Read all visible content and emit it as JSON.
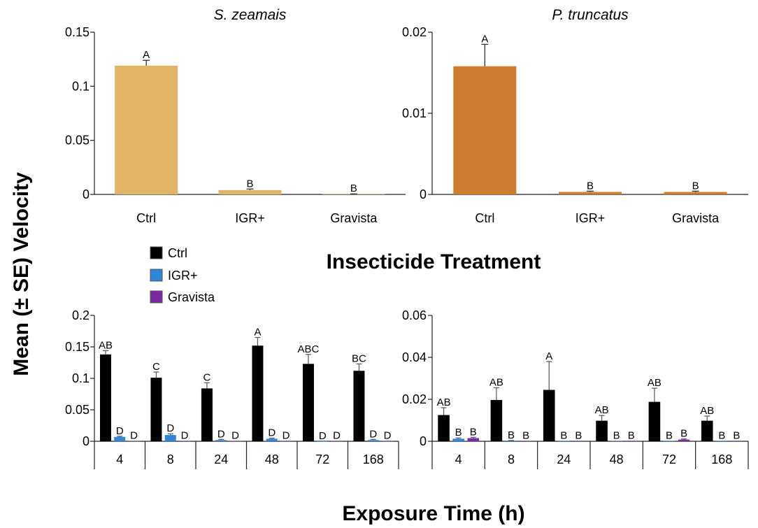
{
  "figure": {
    "y_label": "Mean (± SE) Velocity",
    "middle_x_label": "Insecticide Treatment",
    "bottom_x_label": "Exposure Time (h)",
    "legend": [
      {
        "label": "Ctrl",
        "color": "#000000"
      },
      {
        "label": "IGR+",
        "color": "#2f86d9"
      },
      {
        "label": "Gravista",
        "color": "#7a2aa0"
      }
    ]
  },
  "chart_data": [
    {
      "id": "top-left",
      "type": "bar",
      "title": "S. zeamais",
      "categories": [
        "Ctrl",
        "IGR+",
        "Gravista"
      ],
      "values": [
        0.119,
        0.004,
        0.0003
      ],
      "errors": [
        0.005,
        0.001,
        0.0002
      ],
      "letters": [
        "A",
        "B",
        "B"
      ],
      "color": "#e2b465",
      "ylim": [
        0,
        0.15
      ],
      "yticks": [
        0,
        0.05,
        0.1,
        0.15
      ],
      "ytick_labels": [
        "0",
        "0.05",
        "0.1",
        "0.15"
      ]
    },
    {
      "id": "top-right",
      "type": "bar",
      "title": "P. truncatus",
      "categories": [
        "Ctrl",
        "IGR+",
        "Gravista"
      ],
      "values": [
        0.0158,
        0.0003,
        0.0003
      ],
      "errors": [
        0.0027,
        0.0001,
        0.0001
      ],
      "letters": [
        "A",
        "B",
        "B"
      ],
      "color": "#cd7b2f",
      "ylim": [
        0,
        0.02
      ],
      "yticks": [
        0,
        0.01,
        0.02
      ],
      "ytick_labels": [
        "0",
        "0.01",
        "0.02"
      ]
    },
    {
      "id": "bottom-left",
      "type": "bar",
      "categories": [
        "4",
        "8",
        "24",
        "48",
        "72",
        "168"
      ],
      "series": [
        {
          "name": "Ctrl",
          "values": [
            0.138,
            0.101,
            0.084,
            0.152,
            0.123,
            0.112
          ],
          "errors": [
            0.006,
            0.009,
            0.009,
            0.013,
            0.015,
            0.011
          ],
          "letters": [
            "AB",
            "C",
            "C",
            "A",
            "ABC",
            "BC"
          ]
        },
        {
          "name": "IGR+",
          "values": [
            0.007,
            0.01,
            0.002,
            0.004,
            0.0,
            0.002
          ],
          "errors": [
            0.001,
            0.002,
            0.001,
            0.001,
            0.0,
            0.001
          ],
          "letters": [
            "D",
            "D",
            "D",
            "D",
            "D",
            "D"
          ]
        },
        {
          "name": "Gravista",
          "values": [
            0.0005,
            0.0005,
            0.0005,
            0.0005,
            0.0005,
            0.0005
          ],
          "errors": [
            0,
            0,
            0,
            0,
            0,
            0
          ],
          "letters": [
            "D",
            "D",
            "D",
            "D",
            "D",
            "D"
          ]
        }
      ],
      "ylim": [
        0,
        0.2
      ],
      "yticks": [
        0,
        0.05,
        0.1,
        0.15,
        0.2
      ],
      "ytick_labels": [
        "0",
        "0.05",
        "0.1",
        "0.15",
        "0.2"
      ]
    },
    {
      "id": "bottom-right",
      "type": "bar",
      "categories": [
        "4",
        "8",
        "24",
        "48",
        "72",
        "168"
      ],
      "series": [
        {
          "name": "Ctrl",
          "values": [
            0.0125,
            0.0197,
            0.0245,
            0.0098,
            0.0188,
            0.0098
          ],
          "errors": [
            0.0035,
            0.0058,
            0.0135,
            0.0025,
            0.0065,
            0.0022
          ],
          "letters": [
            "AB",
            "AB",
            "A",
            "AB",
            "AB",
            "AB"
          ]
        },
        {
          "name": "IGR+",
          "values": [
            0.0012,
            0.0003,
            0.0002,
            0.0002,
            0.0002,
            0.0002
          ],
          "errors": [
            0.0004,
            0.0001,
            0,
            0,
            0,
            0
          ],
          "letters": [
            "B",
            "B",
            "B",
            "B",
            "B",
            "B"
          ]
        },
        {
          "name": "Gravista",
          "values": [
            0.0015,
            0.0002,
            0.0002,
            0.0002,
            0.0008,
            0.0002
          ],
          "errors": [
            0.0004,
            0,
            0,
            0,
            0.0003,
            0
          ],
          "letters": [
            "B",
            "B",
            "B",
            "B",
            "B",
            "B"
          ]
        }
      ],
      "ylim": [
        0,
        0.06
      ],
      "yticks": [
        0,
        0.02,
        0.04,
        0.06
      ],
      "ytick_labels": [
        "0",
        "0.02",
        "0.04",
        "0.06"
      ]
    }
  ]
}
